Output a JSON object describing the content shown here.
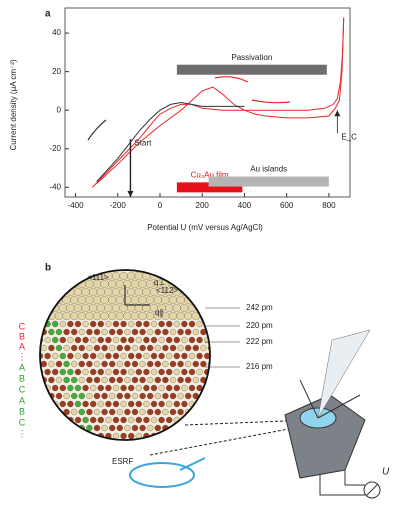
{
  "chart_data": {
    "type": "line",
    "panel_label": "a",
    "x_label": "Potential U (mV versus Ag/AgCl)",
    "y_label": "Current density (μA cm⁻²)",
    "xlim": [
      -450,
      900
    ],
    "xticks": [
      -400,
      -200,
      0,
      200,
      400,
      600,
      800
    ],
    "ylim": [
      -45,
      53
    ],
    "yticks": [
      -40,
      -20,
      0,
      20,
      40
    ],
    "series": [
      {
        "color": "#e8262a",
        "x": [
          -320,
          -250,
          -180,
          -100,
          -40,
          0,
          50,
          100,
          150,
          200,
          300,
          400,
          500,
          600,
          700,
          780,
          820,
          840,
          855,
          865,
          870
        ],
        "values": [
          -40,
          -32,
          -24,
          -15,
          -7,
          -2,
          1,
          3,
          3,
          1,
          0,
          0,
          0,
          0,
          0,
          1,
          3,
          6,
          15,
          30,
          48
        ]
      },
      {
        "color": "#e8262a",
        "x": [
          870,
          862,
          850,
          830,
          800,
          700,
          600,
          500,
          450,
          400,
          350,
          300,
          250,
          200,
          150,
          100,
          50,
          0,
          -100,
          -200,
          -300
        ],
        "values": [
          48,
          20,
          5,
          1,
          -3,
          -4,
          -4,
          -3,
          -2,
          0,
          3,
          8,
          12,
          10,
          5,
          0,
          -4,
          -8,
          -17,
          -28,
          -38
        ]
      },
      {
        "color": "#333333",
        "x": [
          -300,
          -200,
          -100,
          -50,
          0,
          50,
          100,
          150,
          200,
          300,
          400
        ],
        "values": [
          -37,
          -25,
          -11,
          -5,
          0,
          3,
          4,
          3,
          2,
          2,
          2
        ]
      }
    ],
    "spans": [
      {
        "label": "Passivation",
        "x": [
          80,
          790
        ],
        "y": 21,
        "color": "#6d6d6d"
      },
      {
        "label": "Cu₃Au film",
        "x": [
          80,
          390
        ],
        "y": -40,
        "color": "#e8101a"
      },
      {
        "label": "Au islands",
        "x": [
          230,
          800
        ],
        "y": -37,
        "color": "#b5b5b5"
      }
    ],
    "markers": [
      {
        "label": "Start",
        "x": -140,
        "y": [
          -15,
          -45
        ]
      },
      {
        "label": "E_C",
        "x": 840,
        "y": [
          -12,
          0
        ]
      }
    ]
  },
  "diagram": {
    "panel_label": "b",
    "directions": [
      "<111>",
      "q⊥",
      "<112̄>",
      "q∥"
    ],
    "spacings": [
      "242 pm",
      "220 pm",
      "222 pm",
      "216 pm"
    ],
    "stack_red": [
      "C",
      "B",
      "A",
      "⋮"
    ],
    "stack_green": [
      "A",
      "B",
      "C",
      "A",
      "B",
      "C",
      "⋮"
    ],
    "source": "ESRF",
    "potential": "U"
  }
}
